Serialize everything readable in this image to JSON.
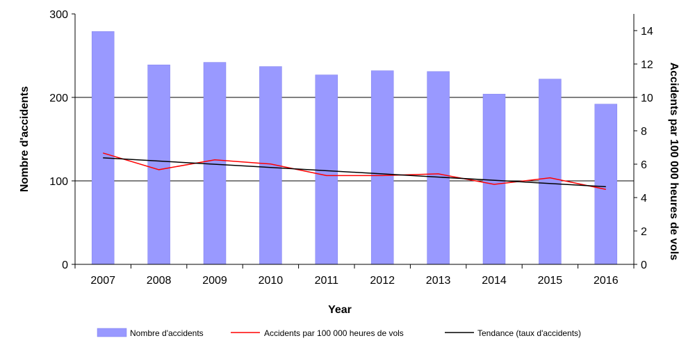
{
  "chart_data": {
    "type": "bar",
    "title": "",
    "xlabel": "Year",
    "ylabel": "Nombre d'accidents",
    "y2label": "Accidents par 100 000 heures de vols",
    "categories": [
      "2007",
      "2008",
      "2009",
      "2010",
      "2011",
      "2012",
      "2013",
      "2014",
      "2015",
      "2016"
    ],
    "ylim": [
      0,
      300
    ],
    "yticks": [
      0,
      100,
      200,
      300
    ],
    "y2lim": [
      0,
      15
    ],
    "y2ticks": [
      0,
      2,
      4,
      6,
      8,
      10,
      12,
      14
    ],
    "grid": "horizontal major lines at 100 and 200",
    "legend_position": "bottom",
    "series": [
      {
        "name": "Nombre d'accidents",
        "type": "bar",
        "axis": "left",
        "color": "#9999ff",
        "values": [
          279,
          239,
          242,
          237,
          227,
          232,
          231,
          204,
          222,
          192
        ]
      },
      {
        "name": "Accidents par 100 000 heures de vols",
        "type": "line",
        "axis": "right",
        "color": "#ff0000",
        "values": [
          6.67,
          5.67,
          6.26,
          6.01,
          5.32,
          5.32,
          5.42,
          4.79,
          5.18,
          4.49
        ]
      },
      {
        "name": "Tendance (taux d'accidents)",
        "type": "line",
        "axis": "right",
        "color": "#000000",
        "values": [
          6.38,
          6.19,
          6.0,
          5.81,
          5.62,
          5.42,
          5.23,
          5.04,
          4.85,
          4.65
        ]
      }
    ]
  }
}
